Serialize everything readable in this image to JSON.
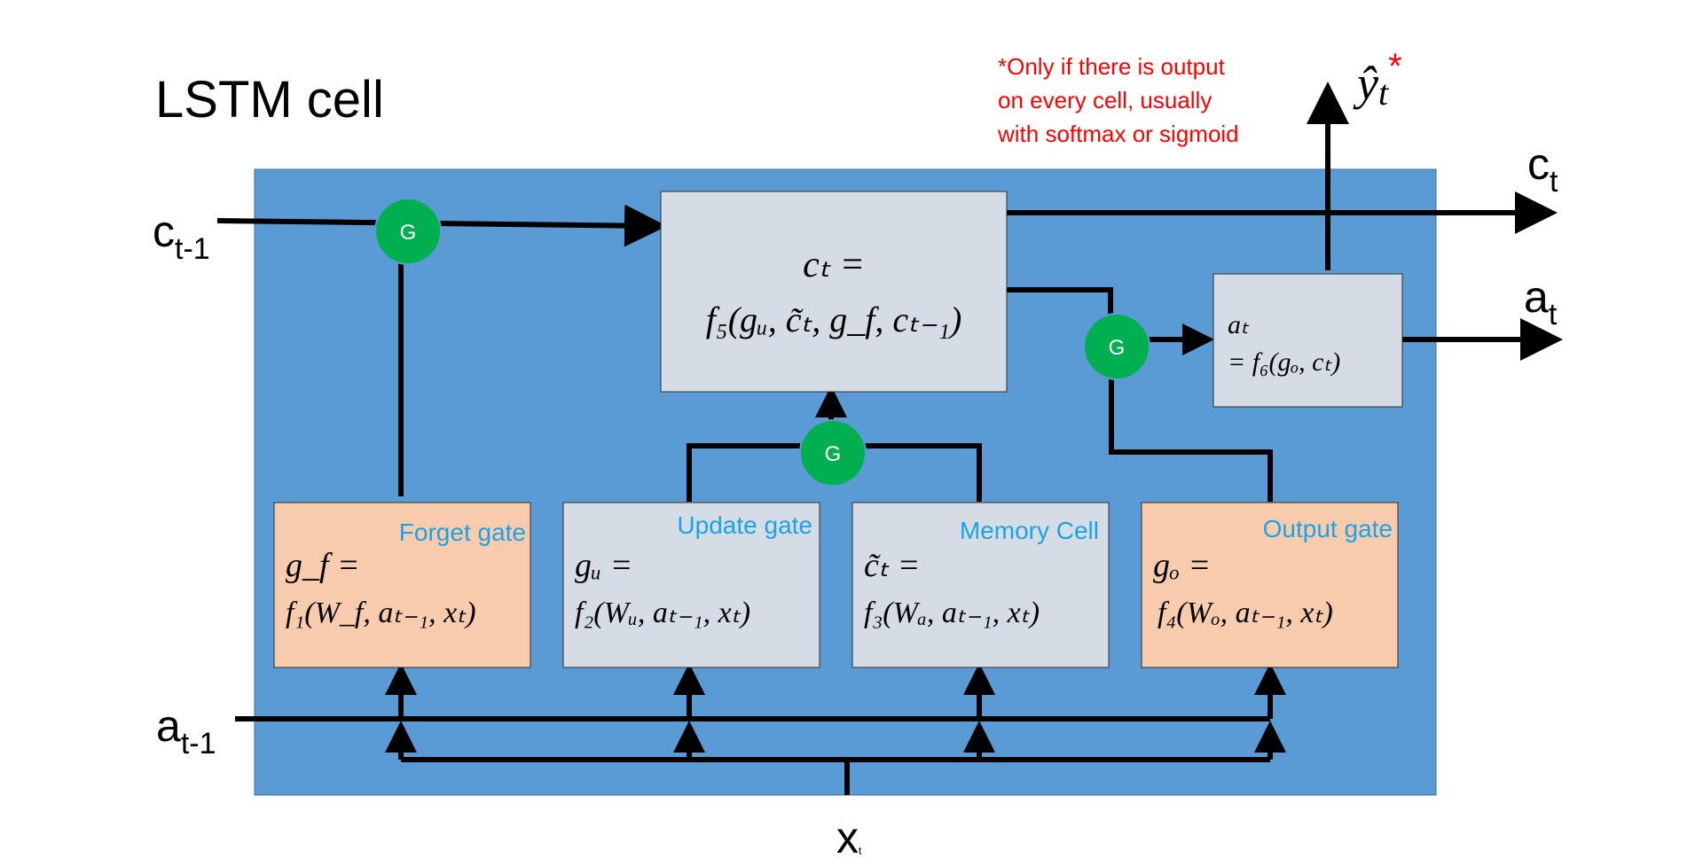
{
  "title": "LSTM cell",
  "note": {
    "lines": [
      "*Only if there is output",
      "on every cell, usually",
      "with softmax or sigmoid"
    ],
    "color": "#ff0000"
  },
  "colors": {
    "cell_background": "#5b9bd5",
    "neutral_box": "#d6dce5",
    "gate_box": "#f8cbad",
    "gate_node": "#00b050",
    "gate_label": "#1aa3e8",
    "arrow": "#000000"
  },
  "gate_node_label": "G",
  "inputs": {
    "c_prev": {
      "base": "c",
      "sub": "t-1"
    },
    "a_prev": {
      "base": "a",
      "sub": "t-1"
    },
    "x": {
      "base": "x",
      "sub": "t"
    }
  },
  "outputs": {
    "c": {
      "base": "c",
      "sub": "t"
    },
    "a": {
      "base": "a",
      "sub": "t"
    },
    "y_hat": {
      "base": "ŷ",
      "sub": "t",
      "mark": "*"
    }
  },
  "boxes": {
    "cell_state": {
      "line1": "cₜ =",
      "line2": "f₅(gᵤ, c̃ₜ, g_f, cₜ₋₁)"
    },
    "activation": {
      "line1": "aₜ",
      "line2": "= f₆(gₒ, cₜ)"
    },
    "forget": {
      "label": "Forget gate",
      "line1": "g_f =",
      "line2": "f₁(W_f, aₜ₋₁, xₜ)"
    },
    "update": {
      "label": "Update gate",
      "line1": "gᵤ =",
      "line2": "f₂(Wᵤ, aₜ₋₁, xₜ)"
    },
    "memory": {
      "label": "Memory Cell",
      "line1": "c̃ₜ =",
      "line2": "f₃(Wₐ, aₜ₋₁, xₜ)"
    },
    "output": {
      "label": "Output gate",
      "line1": "gₒ =",
      "line2": "f₄(Wₒ, aₜ₋₁, xₜ)"
    }
  }
}
